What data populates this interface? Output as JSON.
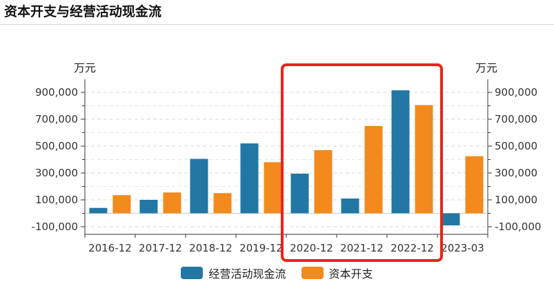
{
  "page": {
    "title": "资本开支与经营活动现金流"
  },
  "chart_data": {
    "type": "bar",
    "categories": [
      "2016-12",
      "2017-12",
      "2018-12",
      "2019-12",
      "2020-12",
      "2021-12",
      "2022-12",
      "2023-03"
    ],
    "series": [
      {
        "name": "经营活动现金流",
        "color": "#2277a4",
        "values": [
          40000,
          100000,
          405000,
          520000,
          295000,
          110000,
          915000,
          -90000
        ]
      },
      {
        "name": "资本开支",
        "color": "#f28a1e",
        "values": [
          135000,
          155000,
          150000,
          380000,
          470000,
          650000,
          805000,
          425000
        ]
      }
    ],
    "y_left_unit": "万元",
    "y_right_unit": "万元",
    "yticks": [
      -100000,
      100000,
      300000,
      500000,
      700000,
      900000
    ],
    "ytick_labels": [
      "-100,000",
      "100,000",
      "300,000",
      "500,000",
      "700,000",
      "900,000"
    ],
    "ylim": [
      -100000,
      1000000
    ],
    "grid": true,
    "legend_position": "bottom",
    "highlight": {
      "categories": [
        "2020-12",
        "2022-12"
      ],
      "color": "#e8241b"
    }
  }
}
